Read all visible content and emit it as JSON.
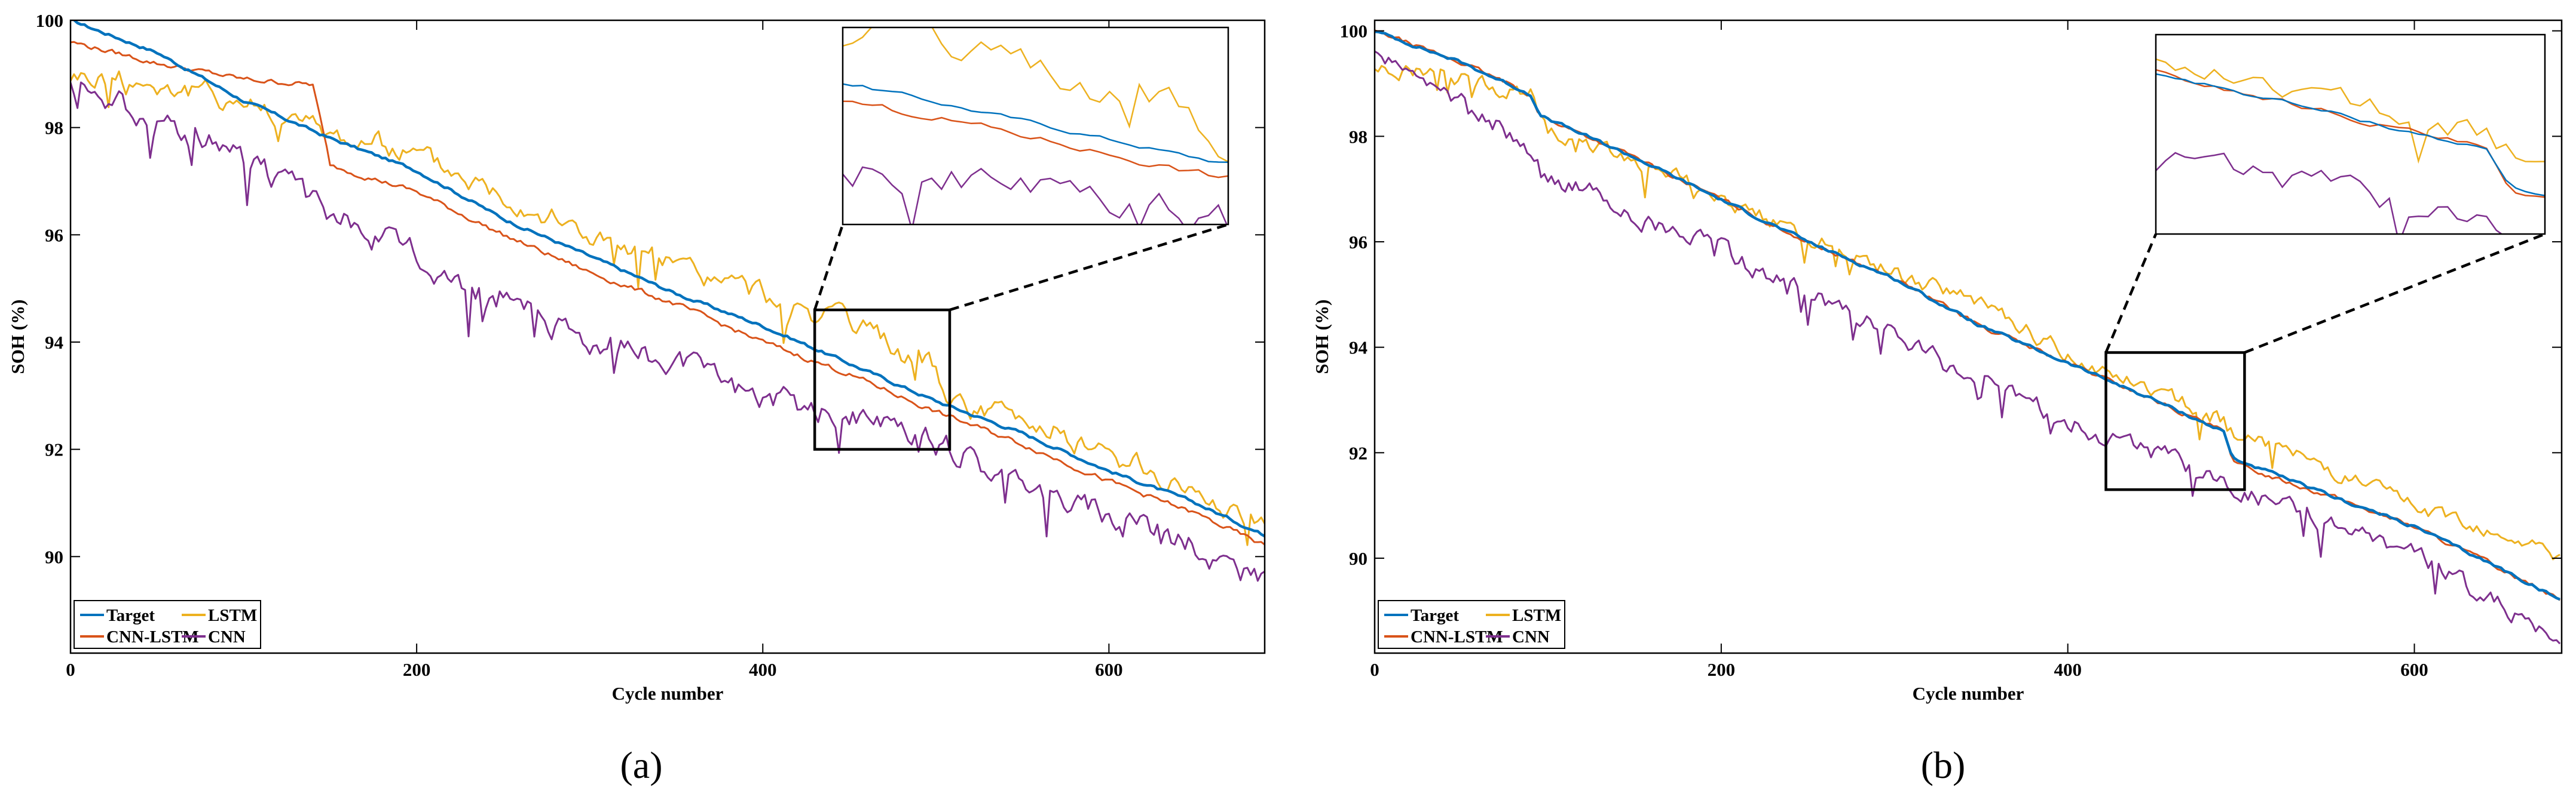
{
  "colors": {
    "Target": "#0072bd",
    "LSTM": "#edb120",
    "CNN-LSTM": "#d95319",
    "CNN": "#7e2f8e"
  },
  "chart_data": [
    {
      "type": "line",
      "caption": "(a)",
      "xlabel": "Cycle number",
      "ylabel": "SOH (%)",
      "xlim": [
        0,
        690
      ],
      "ylim": [
        88.2,
        100
      ],
      "xticks": [
        0,
        200,
        400,
        600
      ],
      "yticks": [
        90,
        92,
        94,
        96,
        98,
        100
      ],
      "legend": {
        "position": "bottom-left",
        "entries": [
          "Target",
          "LSTM",
          "CNN-LSTM",
          "CNN"
        ]
      },
      "zoom": {
        "box_x": [
          430,
          508
        ],
        "box_y": [
          92,
          94.6
        ],
        "inset_position": "top-right"
      },
      "series": [
        {
          "name": "Target",
          "anchors": [
            [
              0,
              100.0
            ],
            [
              50,
              99.4
            ],
            [
              100,
              98.5
            ],
            [
              150,
              97.8
            ],
            [
              200,
              97.2
            ],
            [
              250,
              96.3
            ],
            [
              300,
              95.6
            ],
            [
              350,
              94.9
            ],
            [
              400,
              94.3
            ],
            [
              450,
              93.6
            ],
            [
              500,
              92.9
            ],
            [
              550,
              92.3
            ],
            [
              600,
              91.6
            ],
            [
              650,
              91.0
            ],
            [
              690,
              90.4
            ]
          ],
          "noise": 0.05
        },
        {
          "name": "LSTM",
          "anchors": [
            [
              0,
              99.0
            ],
            [
              50,
              98.8
            ],
            [
              100,
              98.5
            ],
            [
              150,
              97.9
            ],
            [
              200,
              97.5
            ],
            [
              250,
              96.8
            ],
            [
              300,
              96.0
            ],
            [
              350,
              95.4
            ],
            [
              400,
              94.9
            ],
            [
              450,
              94.3
            ],
            [
              500,
              93.5
            ],
            [
              510,
              92.8
            ],
            [
              550,
              92.6
            ],
            [
              600,
              91.9
            ],
            [
              650,
              91.2
            ],
            [
              690,
              90.6
            ]
          ],
          "noise": 0.35
        },
        {
          "name": "CNN-LSTM",
          "anchors": [
            [
              0,
              99.6
            ],
            [
              50,
              99.2
            ],
            [
              100,
              98.9
            ],
            [
              140,
              98.8
            ],
            [
              150,
              97.3
            ],
            [
              200,
              96.8
            ],
            [
              250,
              96.0
            ],
            [
              300,
              95.3
            ],
            [
              350,
              94.7
            ],
            [
              400,
              94.0
            ],
            [
              450,
              93.4
            ],
            [
              500,
              92.7
            ],
            [
              550,
              92.1
            ],
            [
              600,
              91.4
            ],
            [
              650,
              90.8
            ],
            [
              690,
              90.2
            ]
          ],
          "noise": 0.08
        },
        {
          "name": "CNN",
          "anchors": [
            [
              0,
              98.8
            ],
            [
              50,
              98.2
            ],
            [
              100,
              97.4
            ],
            [
              150,
              96.4
            ],
            [
              200,
              95.6
            ],
            [
              250,
              94.7
            ],
            [
              300,
              94.1
            ],
            [
              350,
              93.6
            ],
            [
              400,
              93.0
            ],
            [
              450,
              92.6
            ],
            [
              500,
              92.1
            ],
            [
              550,
              91.4
            ],
            [
              600,
              90.8
            ],
            [
              650,
              90.2
            ],
            [
              690,
              89.5
            ]
          ],
          "noise": 0.4
        }
      ]
    },
    {
      "type": "line",
      "caption": "(b)",
      "xlabel": "Cycle number",
      "ylabel": "SOH (%)",
      "xlim": [
        0,
        685
      ],
      "ylim": [
        88.2,
        100.2
      ],
      "xticks": [
        0,
        200,
        400,
        600
      ],
      "yticks": [
        90,
        92,
        94,
        96,
        98,
        100
      ],
      "legend": {
        "position": "bottom-left",
        "entries": [
          "Target",
          "LSTM",
          "CNN-LSTM",
          "CNN"
        ]
      },
      "zoom": {
        "box_x": [
          422,
          502
        ],
        "box_y": [
          91.3,
          93.9
        ],
        "inset_position": "top-right"
      },
      "series": [
        {
          "name": "Target",
          "anchors": [
            [
              0,
              100.0
            ],
            [
              50,
              99.4
            ],
            [
              90,
              98.8
            ],
            [
              95,
              98.4
            ],
            [
              150,
              97.6
            ],
            [
              200,
              96.8
            ],
            [
              250,
              96.0
            ],
            [
              300,
              95.3
            ],
            [
              350,
              94.4
            ],
            [
              400,
              93.7
            ],
            [
              450,
              93.0
            ],
            [
              490,
              92.4
            ],
            [
              495,
              91.9
            ],
            [
              550,
              91.2
            ],
            [
              600,
              90.6
            ],
            [
              650,
              89.8
            ],
            [
              685,
              89.2
            ]
          ],
          "noise": 0.05
        },
        {
          "name": "LSTM",
          "anchors": [
            [
              0,
              99.3
            ],
            [
              50,
              99.1
            ],
            [
              90,
              98.8
            ],
            [
              100,
              98.1
            ],
            [
              150,
              97.6
            ],
            [
              200,
              96.8
            ],
            [
              250,
              96.1
            ],
            [
              300,
              95.4
            ],
            [
              350,
              94.8
            ],
            [
              400,
              93.9
            ],
            [
              450,
              93.2
            ],
            [
              490,
              92.6
            ],
            [
              500,
              92.3
            ],
            [
              550,
              91.7
            ],
            [
              600,
              91.0
            ],
            [
              650,
              90.5
            ],
            [
              685,
              90.0
            ]
          ],
          "noise": 0.25
        },
        {
          "name": "CNN-LSTM",
          "anchors": [
            [
              0,
              100.0
            ],
            [
              50,
              99.4
            ],
            [
              90,
              98.8
            ],
            [
              95,
              98.4
            ],
            [
              150,
              97.6
            ],
            [
              200,
              96.8
            ],
            [
              250,
              96.0
            ],
            [
              300,
              95.3
            ],
            [
              350,
              94.4
            ],
            [
              400,
              93.7
            ],
            [
              450,
              93.0
            ],
            [
              490,
              92.4
            ],
            [
              495,
              91.8
            ],
            [
              550,
              91.2
            ],
            [
              600,
              90.6
            ],
            [
              650,
              89.8
            ],
            [
              685,
              89.2
            ]
          ],
          "noise": 0.07
        },
        {
          "name": "CNN",
          "anchors": [
            [
              0,
              99.5
            ],
            [
              50,
              98.7
            ],
            [
              90,
              97.8
            ],
            [
              100,
              97.3
            ],
            [
              150,
              96.5
            ],
            [
              200,
              95.8
            ],
            [
              250,
              95.0
            ],
            [
              300,
              94.2
            ],
            [
              350,
              93.3
            ],
            [
              400,
              92.6
            ],
            [
              450,
              92.0
            ],
            [
              490,
              91.4
            ],
            [
              550,
              90.7
            ],
            [
              600,
              90.0
            ],
            [
              650,
              89.1
            ],
            [
              685,
              88.3
            ]
          ],
          "noise": 0.3
        }
      ]
    }
  ]
}
